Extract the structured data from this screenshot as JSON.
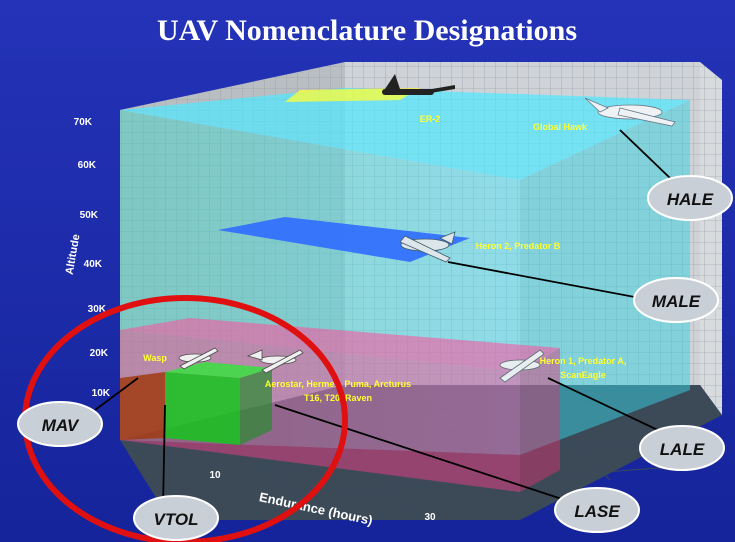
{
  "title": "UAV Nomenclature Designations",
  "axes": {
    "y_label": "Altitude",
    "x_label": "Endurance (hours)",
    "y_ticks": [
      "70K",
      "60K",
      "50K",
      "40K",
      "30K",
      "20K",
      "10K"
    ],
    "x_ticks": [
      "10",
      "30"
    ]
  },
  "aircraft_labels": {
    "er2": "ER-2",
    "global_hawk": "Global Hawk",
    "heron2": "Heron 2, Predator B",
    "heron1_line1": "Heron 1, Predator A,",
    "heron1_line2": "ScanEagle",
    "wasp": "Wasp",
    "aerostar_line1": "Aerostar, Hermes, Puma, Arcturus",
    "aerostar_line2": "T16, T20, Raven"
  },
  "classes": {
    "hale": "HALE",
    "male": "MALE",
    "lale": "LALE",
    "lase": "LASE",
    "mav": "MAV",
    "vtol": "VTOL"
  },
  "colors": {
    "background": "#1c2fa8",
    "grid_wall": "#c9cdd1",
    "hale_zone": "#3ee0e8",
    "male_zone": "#2f6bff",
    "low_zone": "#ff3f8a",
    "vtol_zone": "#14c41c",
    "mav_zone": "#a03a12",
    "highlight_ring": "#e01010"
  }
}
